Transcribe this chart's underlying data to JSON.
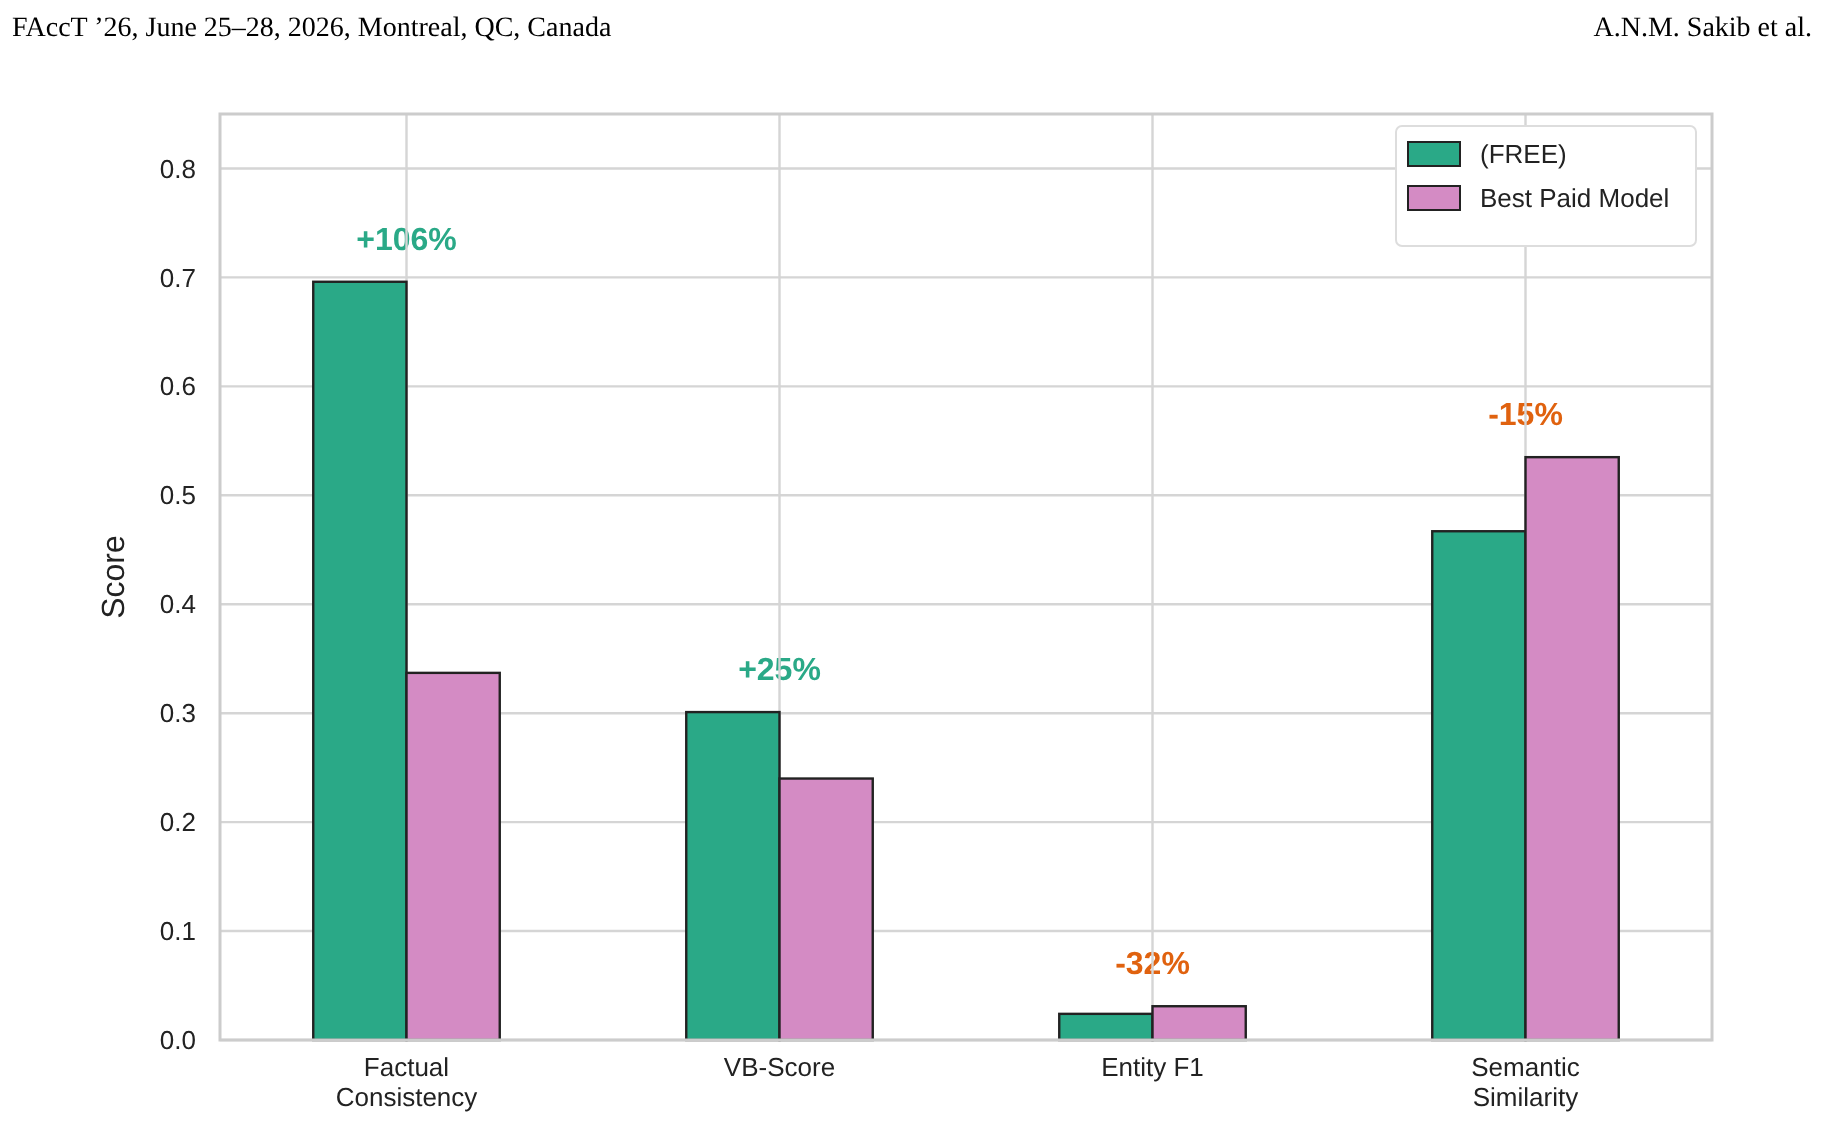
{
  "chart_data": {
    "type": "bar",
    "ylabel": "Score",
    "categories": [
      "Factual\nConsistency",
      "VB-Score",
      "Entity F1",
      "Semantic\nSimilarity"
    ],
    "series": [
      {
        "name": "(FREE)",
        "color": "#2aa987",
        "values": [
          0.696,
          0.301,
          0.024,
          0.467
        ]
      },
      {
        "name": "Best Paid Model",
        "color": "#d48bc4",
        "values": [
          0.337,
          0.24,
          0.031,
          0.535
        ]
      }
    ],
    "ylim": [
      0,
      0.85
    ],
    "yticks": [
      {
        "value": 0,
        "label": "0.0"
      },
      0.1,
      0.2,
      0.3,
      0.4,
      0.5,
      0.6,
      0.7,
      0.8
    ],
    "grid": true,
    "legend": "top right",
    "annotations": [
      "FAccT ’26, June 25–28, 2026, Montreal, QC, Canada",
      "A.N.M. Sakib et al.",
      "+106%",
      "+25%",
      "-32%",
      "-15%"
    ]
  }
}
